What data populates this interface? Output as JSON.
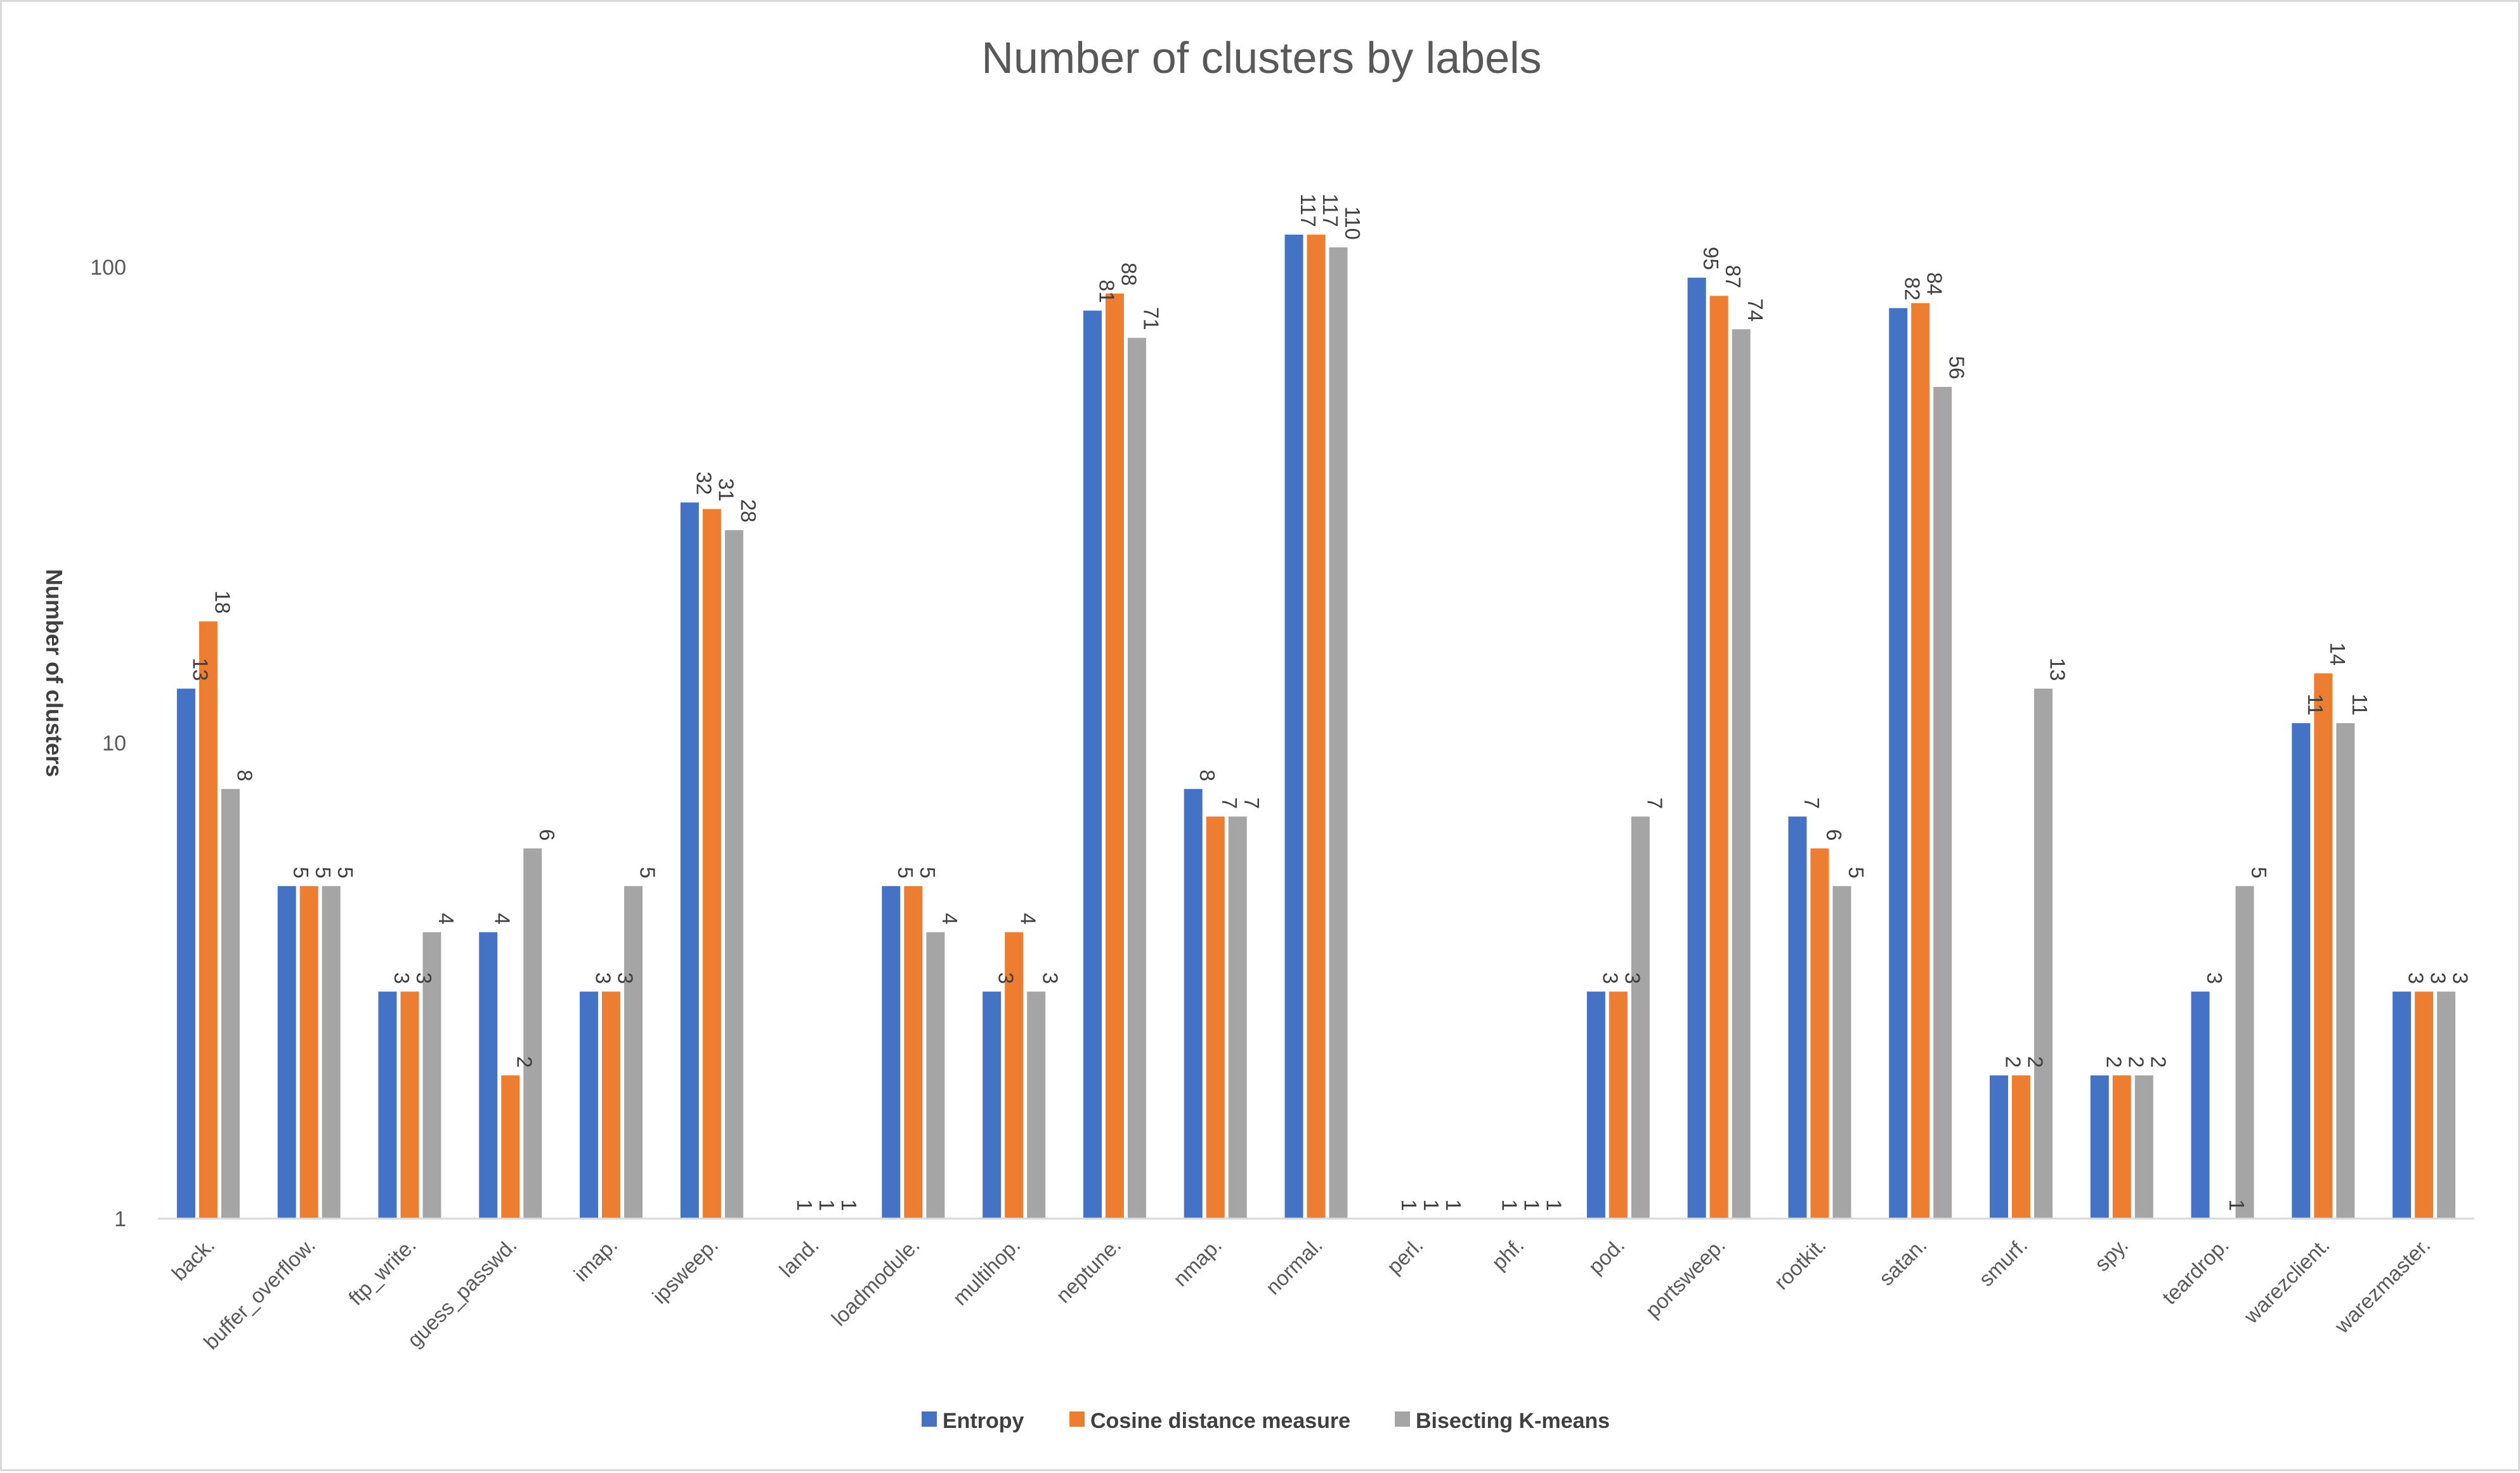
{
  "chart_data": {
    "type": "bar",
    "title": "Number of clusters by labels",
    "xlabel": "",
    "ylabel": "Number of clusters",
    "yscale": "log",
    "ylim": [
      1,
      200
    ],
    "yticks": [
      1,
      10,
      100
    ],
    "grid": false,
    "legend_position": "bottom",
    "categories": [
      "back.",
      "buffer_overflow.",
      "ftp_write.",
      "guess_passwd.",
      "imap.",
      "ipsweep.",
      "land.",
      "loadmodule.",
      "multihop.",
      "neptune.",
      "nmap.",
      "normal.",
      "perl.",
      "phf.",
      "pod.",
      "portsweep.",
      "rootkit.",
      "satan.",
      "smurf.",
      "spy.",
      "teardrop.",
      "warezclient.",
      "warezmaster."
    ],
    "series": [
      {
        "name": "Entropy",
        "color": "#4472c4",
        "values": [
          13,
          5,
          3,
          4,
          3,
          32,
          1,
          5,
          3,
          81,
          8,
          117,
          1,
          1,
          3,
          95,
          7,
          82,
          2,
          2,
          3,
          11,
          3
        ]
      },
      {
        "name": "Cosine distance measure",
        "color": "#ed7d31",
        "values": [
          18,
          5,
          3,
          2,
          3,
          31,
          1,
          5,
          4,
          88,
          7,
          117,
          1,
          1,
          3,
          87,
          6,
          84,
          2,
          2,
          1,
          14,
          3
        ]
      },
      {
        "name": "Bisecting K-means",
        "color": "#a5a5a5",
        "values": [
          8,
          5,
          4,
          6,
          5,
          28,
          1,
          4,
          3,
          71,
          7,
          110,
          1,
          1,
          7,
          74,
          5,
          56,
          13,
          2,
          5,
          11,
          3
        ]
      }
    ]
  }
}
